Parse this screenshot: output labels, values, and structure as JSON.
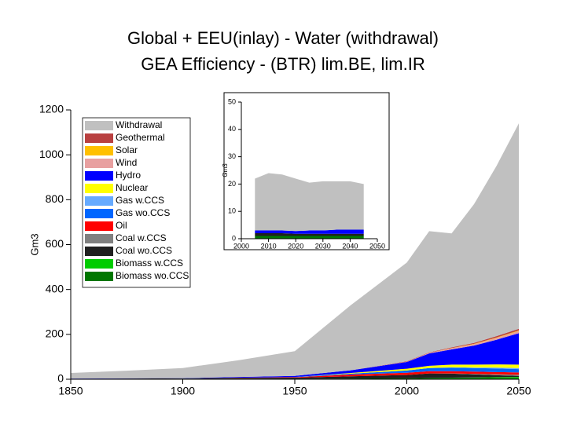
{
  "chart_data": [
    {
      "type": "area",
      "stacked": true,
      "title": [
        "Global + EEU(inlay) - Water (withdrawal)",
        "GEA Efficiency - (BTR) lim.BE, lim.IR"
      ],
      "ylabel": "Gm3",
      "x": [
        1850,
        1875,
        1900,
        1925,
        1950,
        1975,
        2000,
        2010,
        2020,
        2030,
        2040,
        2050
      ],
      "xlim": [
        1850,
        2050
      ],
      "xticks": [
        1850,
        1900,
        1950,
        2000,
        2050
      ],
      "ylim": [
        0,
        1200
      ],
      "yticks": [
        0,
        200,
        400,
        600,
        800,
        1000,
        1200
      ],
      "legend": "upper left",
      "series": [
        {
          "name": "Biomass wo.CCS",
          "color": "#007700",
          "values": [
            1,
            1,
            2,
            2,
            2,
            3,
            4,
            6,
            6,
            6,
            5,
            5
          ]
        },
        {
          "name": "Biomass w.CCS",
          "color": "#00cc00",
          "values": [
            0,
            0,
            0,
            0,
            0,
            0,
            0,
            0,
            1,
            2,
            4,
            5
          ]
        },
        {
          "name": "Coal wo.CCS",
          "color": "#202020",
          "values": [
            1,
            2,
            2,
            4,
            5,
            10,
            15,
            20,
            18,
            14,
            9,
            5
          ]
        },
        {
          "name": "Coal w.CCS",
          "color": "#808080",
          "values": [
            0,
            0,
            0,
            0,
            0,
            0,
            0,
            0,
            1,
            2,
            4,
            5
          ]
        },
        {
          "name": "Oil",
          "color": "#ff0000",
          "values": [
            0,
            0,
            0,
            1,
            2,
            8,
            10,
            10,
            10,
            10,
            10,
            10
          ]
        },
        {
          "name": "Gas wo.CCS",
          "color": "#0066ff",
          "values": [
            0,
            0,
            0,
            0,
            1,
            4,
            10,
            14,
            16,
            16,
            16,
            15
          ]
        },
        {
          "name": "Gas w.CCS",
          "color": "#66aaff",
          "values": [
            0,
            0,
            0,
            0,
            0,
            0,
            0,
            0,
            1,
            2,
            4,
            5
          ]
        },
        {
          "name": "Nuclear",
          "color": "#ffff00",
          "values": [
            0,
            0,
            0,
            0,
            0,
            3,
            8,
            10,
            12,
            13,
            14,
            15
          ]
        },
        {
          "name": "Hydro",
          "color": "#0000ff",
          "values": [
            1,
            1,
            1,
            3,
            5,
            12,
            30,
            55,
            68,
            85,
            110,
            140
          ]
        },
        {
          "name": "Wind",
          "color": "#e8a0a0",
          "values": [
            0,
            0,
            0,
            0,
            0,
            0,
            1,
            3,
            5,
            6,
            8,
            10
          ]
        },
        {
          "name": "Solar",
          "color": "#ffc000",
          "values": [
            0,
            0,
            0,
            0,
            0,
            0,
            0,
            0,
            1,
            2,
            2,
            3
          ]
        },
        {
          "name": "Geothermal",
          "color": "#b94040",
          "values": [
            0,
            0,
            0,
            0,
            0,
            0,
            2,
            2,
            3,
            4,
            6,
            7
          ]
        },
        {
          "name": "Withdrawal",
          "color": "#c0c0c0",
          "values": [
            25,
            34,
            45,
            75,
            110,
            290,
            440,
            540,
            508,
            618,
            758,
            915
          ]
        }
      ]
    },
    {
      "type": "area",
      "stacked": true,
      "ylabel": "Gm3",
      "x": [
        2005,
        2010,
        2015,
        2020,
        2025,
        2030,
        2035,
        2040,
        2045
      ],
      "xlim": [
        2000,
        2050
      ],
      "xticks": [
        2000,
        2010,
        2020,
        2030,
        2040,
        2050
      ],
      "ylim": [
        0,
        50
      ],
      "yticks": [
        0,
        10,
        20,
        30,
        40,
        50
      ],
      "series": [
        {
          "color": "#007700",
          "values": [
            1,
            1,
            1,
            1,
            1,
            1,
            1,
            1,
            1
          ]
        },
        {
          "color": "#202020",
          "values": [
            1,
            1,
            1,
            0.8,
            0.8,
            0.8,
            0.8,
            0.8,
            0.8
          ]
        },
        {
          "color": "#0000ff",
          "values": [
            1,
            1,
            1,
            1,
            1.2,
            1.2,
            1.5,
            1.5,
            1.5
          ]
        },
        {
          "color": "#c0c0c0",
          "values": [
            19,
            21,
            20.5,
            19.2,
            17.5,
            18,
            17.7,
            17.7,
            16.7
          ]
        }
      ]
    }
  ]
}
